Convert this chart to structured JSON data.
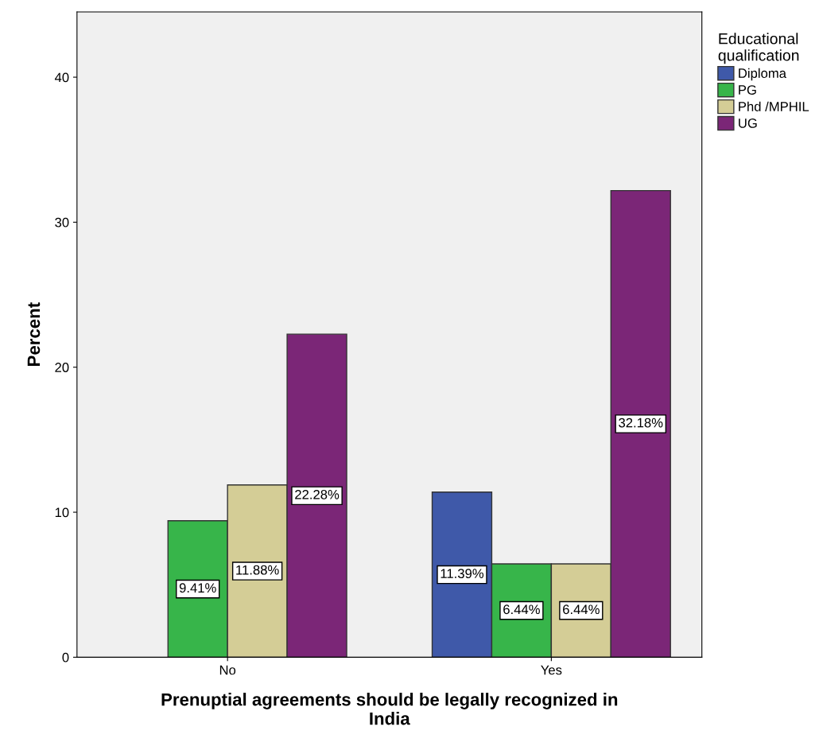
{
  "chart_data": {
    "type": "bar",
    "xlabel": "Prenuptial agreements should be legally recognized in\nIndia",
    "ylabel": "Percent",
    "legend_title": "Educational\nqualification",
    "categories": [
      "No",
      "Yes"
    ],
    "series": [
      {
        "name": "Diploma",
        "color": "#3f59a9",
        "values": [
          null,
          11.39
        ],
        "value_labels": [
          null,
          "11.39%"
        ]
      },
      {
        "name": "PG",
        "color": "#37b54a",
        "values": [
          9.41,
          6.44
        ],
        "value_labels": [
          "9.41%",
          "6.44%"
        ]
      },
      {
        "name": "Phd /MPHIL",
        "color": "#d4cd96",
        "values": [
          11.88,
          6.44
        ],
        "value_labels": [
          "11.88%",
          "6.44%"
        ]
      },
      {
        "name": "UG",
        "color": "#7b2677",
        "values": [
          22.28,
          32.18
        ],
        "value_labels": [
          "22.28%",
          "32.18%"
        ]
      }
    ],
    "ylim": [
      0,
      44.5
    ],
    "yticks": [
      0,
      10,
      20,
      30,
      40
    ],
    "grid": false,
    "legend": "top right"
  }
}
